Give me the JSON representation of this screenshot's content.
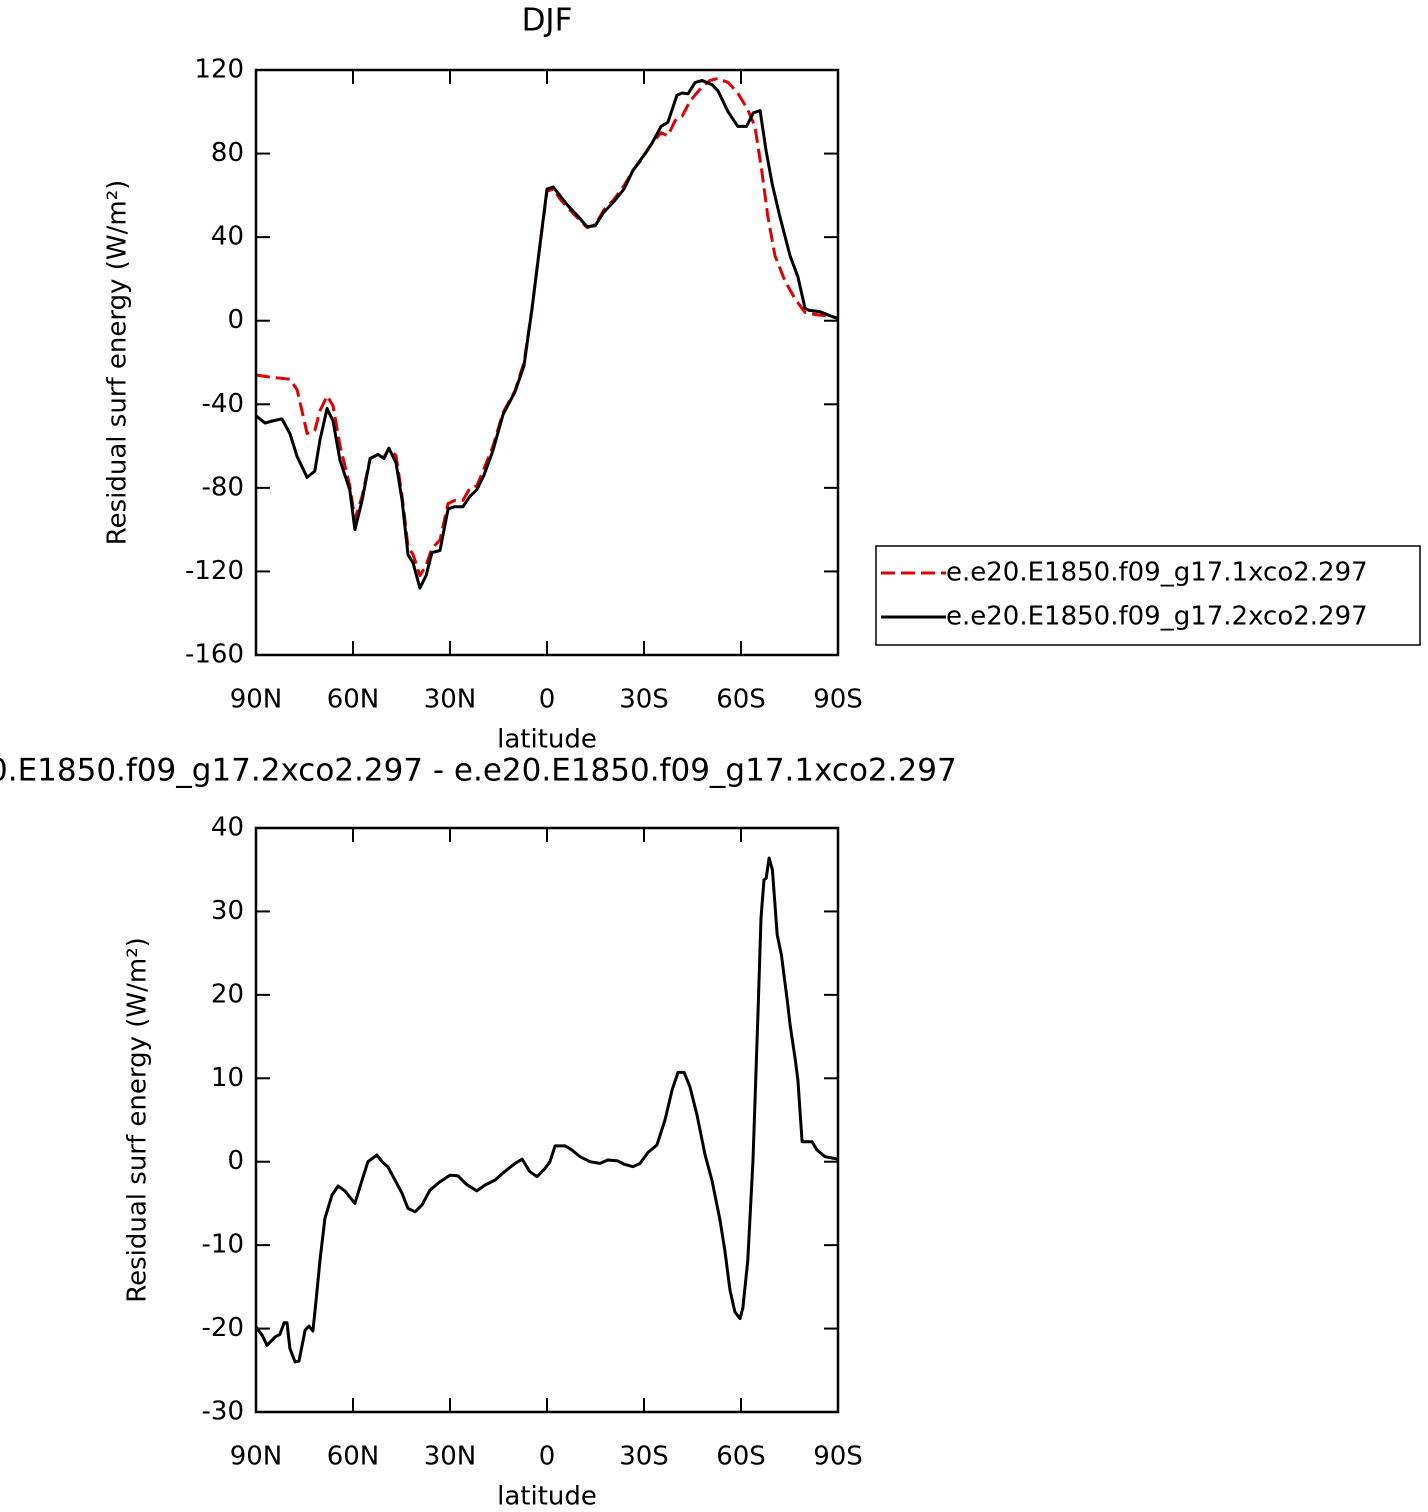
{
  "chart_data": [
    {
      "type": "line",
      "title": "DJF",
      "xlabel": "latitude",
      "ylabel": "Residual surf energy (W/m²)",
      "xlim": [
        90,
        -90
      ],
      "xticks": [
        {
          "value": 90,
          "label": "90N"
        },
        {
          "value": 60,
          "label": "60N"
        },
        {
          "value": 30,
          "label": "30N"
        },
        0,
        {
          "value": -30,
          "label": "30S"
        },
        {
          "value": -60,
          "label": "60S"
        },
        {
          "value": -90,
          "label": "90S"
        }
      ],
      "ylim": [
        -160,
        120
      ],
      "yticks": [
        -160,
        -120,
        -80,
        -40,
        0,
        40,
        80,
        120
      ],
      "legend": "right",
      "series": [
        {
          "name": "e.e20.E1850.f09_g17.1xco2.297",
          "color": "#e00000",
          "dash": true,
          "x": [
            90,
            85.7,
            79.5,
            77.3,
            74.2,
            71.8,
            70.2,
            68,
            66.2,
            64,
            61,
            59.4,
            57.2,
            54.7,
            52.3,
            50.4,
            48.9,
            46.7,
            44.8,
            43,
            41.4,
            39.3,
            37.4,
            35.6,
            33.1,
            30.6,
            28.5,
            26,
            23.8,
            21.7,
            19.5,
            16.7,
            13.6,
            9.9,
            7.1,
            4.7,
            2.2,
            0,
            -1.9,
            -4,
            -6.5,
            -9.6,
            -12.4,
            -14.9,
            -17.6,
            -20.7,
            -23.8,
            -26.6,
            -29.4,
            -32.5,
            -35.3,
            -37.4,
            -39.6,
            -41.8,
            -44.2,
            -47.4,
            -50.4,
            -52.9,
            -56,
            -59,
            -62.1,
            -64.3,
            -66.4,
            -68.3,
            -70.5,
            -73.6,
            -76.7,
            -79.8,
            -82.8,
            -85.9,
            -90
          ],
          "values": [
            -26,
            -27,
            -28,
            -33,
            -54,
            -52.6,
            -43,
            -36,
            -40.7,
            -60,
            -79,
            -95,
            -84,
            -66,
            -64,
            -65.5,
            -61,
            -64.6,
            -84,
            -108,
            -112,
            -122,
            -117,
            -109,
            -105,
            -87.5,
            -86,
            -86,
            -80,
            -79,
            -71,
            -60,
            -44,
            -33.5,
            -20,
            5,
            36,
            62,
            63,
            58.4,
            54,
            49,
            44.5,
            46,
            53,
            58,
            64.6,
            72,
            77.5,
            85,
            90,
            88.5,
            95.7,
            98,
            105,
            111,
            115,
            116,
            114,
            109,
            101,
            93,
            72,
            50,
            31,
            19,
            10.5,
            4,
            3,
            2.4,
            1.4
          ]
        },
        {
          "name": "e.e20.E1850.f09_g17.2xco2.297",
          "color": "#000000",
          "dash": false,
          "x": [
            90,
            87.2,
            85,
            82,
            79.5,
            77.3,
            74.2,
            71.8,
            70.2,
            68,
            66.2,
            64,
            61,
            59.4,
            57.2,
            54.7,
            52.3,
            50.4,
            48.9,
            46.7,
            44.8,
            43,
            41.4,
            39.3,
            37.4,
            35.6,
            33.1,
            30.6,
            28.5,
            26,
            23.8,
            21.7,
            19.5,
            16.7,
            13.6,
            9.9,
            7.1,
            4.7,
            2.2,
            0,
            -1.9,
            -4,
            -6.5,
            -9.6,
            -12.4,
            -14.9,
            -17.6,
            -20.7,
            -23.8,
            -26.6,
            -29.4,
            -32.5,
            -35.3,
            -37.4,
            -38.7,
            -40.2,
            -41.8,
            -43.6,
            -45.8,
            -47.9,
            -51,
            -52.9,
            -56,
            -59,
            -61.7,
            -63.8,
            -65.9,
            -67.8,
            -69.7,
            -72,
            -75.2,
            -77.6,
            -79.8,
            -81,
            -84.4,
            -87.5,
            -90
          ],
          "values": [
            -45.5,
            -49,
            -48,
            -47,
            -54,
            -65,
            -75,
            -72,
            -57,
            -42,
            -48,
            -67,
            -81,
            -100,
            -86,
            -66,
            -64,
            -66,
            -61,
            -68,
            -86,
            -112,
            -116,
            -128,
            -122,
            -111,
            -110,
            -90,
            -89,
            -89,
            -84,
            -81,
            -74,
            -62,
            -45,
            -34,
            -21.5,
            5,
            36,
            63,
            64,
            60,
            55,
            50,
            45,
            45.5,
            52,
            57,
            63,
            72,
            78,
            85,
            93,
            95,
            101,
            108,
            109,
            108.6,
            114,
            115,
            113,
            110,
            100,
            93,
            93,
            99.5,
            100.5,
            81,
            65,
            50,
            31,
            21,
            6,
            5,
            4.3,
            2.4,
            1
          ]
        }
      ]
    },
    {
      "type": "line",
      "title": "0.E1850.f09_g17.2xco2.297 - e.e20.E1850.f09_g17.1xco2.297",
      "xlabel": "latitude",
      "ylabel": "Residual surf energy (W/m²)",
      "xlim": [
        90,
        -90
      ],
      "xticks": [
        {
          "value": 90,
          "label": "90N"
        },
        {
          "value": 60,
          "label": "60N"
        },
        {
          "value": 30,
          "label": "30N"
        },
        0,
        {
          "value": -30,
          "label": "30S"
        },
        {
          "value": -60,
          "label": "60S"
        },
        {
          "value": -90,
          "label": "90S"
        }
      ],
      "ylim": [
        -30,
        40
      ],
      "yticks": [
        -30,
        -20,
        -10,
        0,
        10,
        20,
        30,
        40
      ],
      "series": [
        {
          "color": "#000000",
          "dash": false,
          "x": [
            90,
            88.1,
            86.6,
            84.1,
            82.6,
            81.3,
            80.4,
            79.5,
            77.9,
            76.7,
            74.8,
            73.6,
            72.4,
            71.4,
            70.2,
            68.7,
            66.5,
            64.6,
            62.5,
            59.4,
            57.2,
            55.4,
            52.6,
            51,
            49.2,
            47,
            44.8,
            43,
            40.8,
            38.7,
            36.2,
            33.1,
            30,
            27.5,
            25,
            21.7,
            19.2,
            16.1,
            13.1,
            9.9,
            7.7,
            5.3,
            3.1,
            0.6,
            -0.9,
            -2.5,
            -5.6,
            -7.7,
            -10.2,
            -13.3,
            -16.4,
            -18.8,
            -21.9,
            -23.8,
            -26.6,
            -28.8,
            -31.2,
            -34,
            -36.5,
            -38.7,
            -40.5,
            -42.4,
            -44.2,
            -46.4,
            -48.9,
            -51,
            -53.5,
            -55,
            -56.6,
            -58.1,
            -59.7,
            -60.6,
            -62.1,
            -63.7,
            -65.3,
            -66.2,
            -67.1,
            -67.8,
            -68.7,
            -69.7,
            -71.2,
            -72.5,
            -74.3,
            -75.2,
            -76.8,
            -77.6,
            -78.9,
            -80.4,
            -82,
            -83.5,
            -86,
            -90
          ],
          "values": [
            -19.8,
            -20.8,
            -22,
            -21,
            -20.7,
            -19.3,
            -19.3,
            -22.4,
            -24,
            -23.9,
            -20.2,
            -19.7,
            -20.3,
            -16.6,
            -11.8,
            -6.8,
            -4,
            -2.9,
            -3.5,
            -5,
            -2.2,
            0,
            0.8,
            0,
            -0.6,
            -2.2,
            -3.8,
            -5.6,
            -6,
            -5.2,
            -3.4,
            -2.4,
            -1.6,
            -1.7,
            -2.7,
            -3.5,
            -2.8,
            -2.2,
            -1.2,
            -0.2,
            0.3,
            -1.2,
            -1.8,
            -0.8,
            0,
            1.9,
            1.9,
            1.4,
            0.6,
            0,
            -0.2,
            0.2,
            0.1,
            -0.3,
            -0.6,
            -0.2,
            1.1,
            2,
            5,
            8.6,
            10.7,
            10.7,
            9,
            5.6,
            0.8,
            -2.2,
            -7,
            -10.6,
            -15.4,
            -18,
            -18.8,
            -17.5,
            -11.8,
            0.2,
            18.2,
            29.2,
            33.8,
            34,
            36.4,
            35,
            27.2,
            24.8,
            19.4,
            16.4,
            12.2,
            9.8,
            2.4,
            2.4,
            2.4,
            1.4,
            0.6,
            0.3
          ]
        }
      ]
    }
  ]
}
